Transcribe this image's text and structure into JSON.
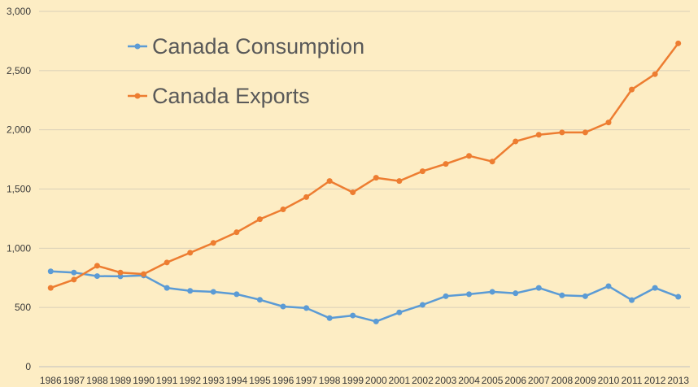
{
  "chart_data": {
    "type": "line",
    "title": "",
    "xlabel": "",
    "ylabel": "",
    "x": [
      "1986",
      "1987",
      "1988",
      "1989",
      "1990",
      "1991",
      "1992",
      "1993",
      "1994",
      "1995",
      "1996",
      "1997",
      "1998",
      "1999",
      "2000",
      "2001",
      "2002",
      "2003",
      "2004",
      "2005",
      "2006",
      "2007",
      "2008",
      "2009",
      "2010",
      "2011",
      "2012",
      "2013"
    ],
    "ylim": [
      0,
      3000
    ],
    "yticks": [
      0,
      500,
      1000,
      1500,
      2000,
      2500,
      3000
    ],
    "ytick_labels": [
      "0",
      "500",
      "1,000",
      "1,500",
      "2,000",
      "2,500",
      "3,000"
    ],
    "grid": true,
    "legend_position": "top-left",
    "series": [
      {
        "name": "Canada Consumption",
        "color": "#5B9BD5",
        "values": [
          805,
          795,
          765,
          763,
          770,
          665,
          640,
          632,
          612,
          565,
          508,
          495,
          410,
          432,
          382,
          458,
          522,
          595,
          612,
          632,
          620,
          665,
          602,
          595,
          680,
          562,
          665,
          590
        ]
      },
      {
        "name": "Canada Exports",
        "color": "#ED7D31",
        "values": [
          665,
          735,
          852,
          795,
          782,
          880,
          962,
          1045,
          1135,
          1245,
          1328,
          1432,
          1568,
          1472,
          1595,
          1568,
          1650,
          1712,
          1780,
          1732,
          1902,
          1958,
          1978,
          1978,
          2062,
          2340,
          2470,
          2730
        ]
      }
    ]
  }
}
